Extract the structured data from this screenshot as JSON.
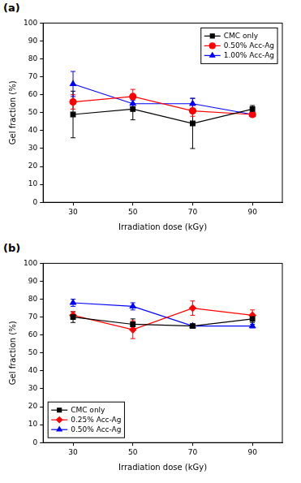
{
  "chart_data": [
    {
      "type": "line",
      "title": "(a)",
      "x_label": "Irradiation dose (kGy)",
      "y_label": "Gel fraction (%)",
      "x": [
        30,
        50,
        70,
        90
      ],
      "xlim": [
        20,
        100
      ],
      "xticks": [
        30,
        50,
        70,
        90
      ],
      "ylim": [
        0,
        100
      ],
      "yticks": [
        0,
        10,
        20,
        30,
        40,
        50,
        60,
        70,
        80,
        90,
        100
      ],
      "grid": false,
      "legend": "upper right",
      "series": [
        {
          "name": "CMC only",
          "color": "#000000",
          "marker": "square",
          "line_style": "solid",
          "values": [
            49,
            52,
            44,
            52
          ],
          "errors": [
            13,
            6,
            14,
            2
          ]
        },
        {
          "name": "0.50% Acc-Ag",
          "color": "#ff0000",
          "marker": "circle",
          "line_style": "solid",
          "values": [
            56,
            59,
            51,
            49
          ],
          "errors": [
            4,
            4,
            3,
            1
          ]
        },
        {
          "name": "1.00% Acc-Ag",
          "color": "#0000ff",
          "marker": "triangle",
          "line_style": "solid",
          "values": [
            66,
            55,
            55,
            49
          ],
          "errors": [
            7,
            2,
            3,
            1
          ]
        }
      ]
    },
    {
      "type": "line",
      "title": "(b)",
      "x_label": "Irradiation dose (kGy)",
      "y_label": "Gel fraction (%)",
      "x": [
        30,
        50,
        70,
        90
      ],
      "xlim": [
        20,
        100
      ],
      "xticks": [
        30,
        50,
        70,
        90
      ],
      "ylim": [
        0,
        100
      ],
      "yticks": [
        0,
        10,
        20,
        30,
        40,
        50,
        60,
        70,
        80,
        90,
        100
      ],
      "grid": false,
      "legend": "lower left",
      "series": [
        {
          "name": "CMC only",
          "color": "#000000",
          "marker": "square",
          "line_style": "solid",
          "values": [
            70,
            66,
            65,
            69
          ],
          "errors": [
            3,
            3,
            1,
            2
          ]
        },
        {
          "name": "0.25% Acc-Ag",
          "color": "#ff0000",
          "marker": "diamond",
          "line_style": "solid",
          "values": [
            71,
            63,
            75,
            71
          ],
          "errors": [
            2,
            5,
            4,
            3
          ]
        },
        {
          "name": "0.50% Acc-Ag",
          "color": "#0000ff",
          "marker": "triangle",
          "line_style": "solid",
          "values": [
            78,
            76,
            65,
            65
          ],
          "errors": [
            2,
            2,
            1,
            1
          ]
        }
      ]
    }
  ]
}
